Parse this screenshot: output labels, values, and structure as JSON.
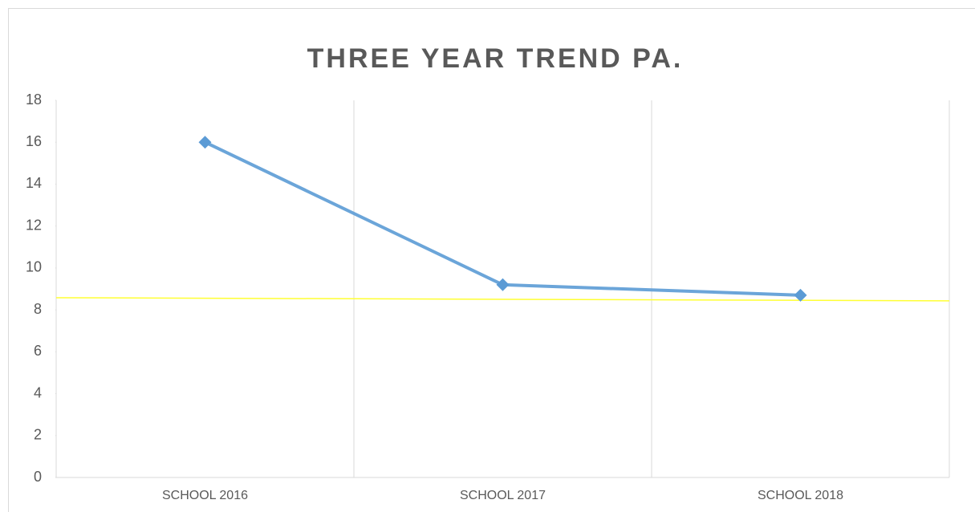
{
  "chart_data": {
    "type": "line",
    "title": "THREE YEAR TREND PA.",
    "categories": [
      "SCHOOL 2016",
      "SCHOOL 2017",
      "SCHOOL 2018"
    ],
    "series": [
      {
        "color": "#5b9bd5",
        "values": [
          16,
          9.2,
          8.7
        ]
      }
    ],
    "trendline": {
      "color": "#ffff33",
      "values": [
        8.58,
        8.43
      ]
    },
    "ylim": [
      0,
      18
    ],
    "yticks": [
      0,
      2,
      4,
      6,
      8,
      10,
      12,
      14,
      16,
      18
    ],
    "grid": "x"
  }
}
